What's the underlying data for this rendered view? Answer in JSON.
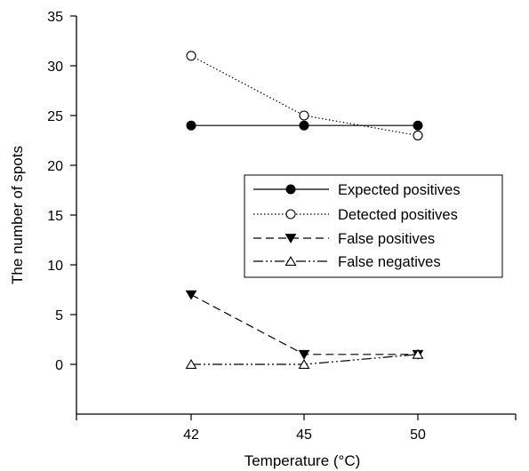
{
  "chart_data": {
    "type": "line",
    "xlabel": "Temperature (°C)",
    "ylabel": "The number of spots",
    "x": [
      42,
      45,
      50
    ],
    "x_tick_labels": [
      "42",
      "45",
      "50"
    ],
    "ylim": [
      -5,
      35
    ],
    "y_ticks": [
      0,
      5,
      10,
      15,
      20,
      25,
      30,
      35
    ],
    "y_tick_labels": [
      "0",
      "5",
      "10",
      "15",
      "20",
      "25",
      "30",
      "35"
    ],
    "grid": false,
    "legend_position": "middle-right",
    "series": [
      {
        "name": "Expected positives",
        "values": [
          24,
          24,
          24
        ],
        "line": "solid",
        "marker": "filled-circle"
      },
      {
        "name": "Detected positives",
        "values": [
          31,
          25,
          23
        ],
        "line": "dotted",
        "marker": "open-circle"
      },
      {
        "name": "False positives",
        "values": [
          7,
          1,
          1
        ],
        "line": "dashed",
        "marker": "filled-triangle-down"
      },
      {
        "name": "False negatives",
        "values": [
          0,
          0,
          1
        ],
        "line": "dash-dot-dot",
        "marker": "open-triangle-up"
      }
    ],
    "colors": {
      "line": "#000000",
      "background": "#ffffff"
    }
  }
}
